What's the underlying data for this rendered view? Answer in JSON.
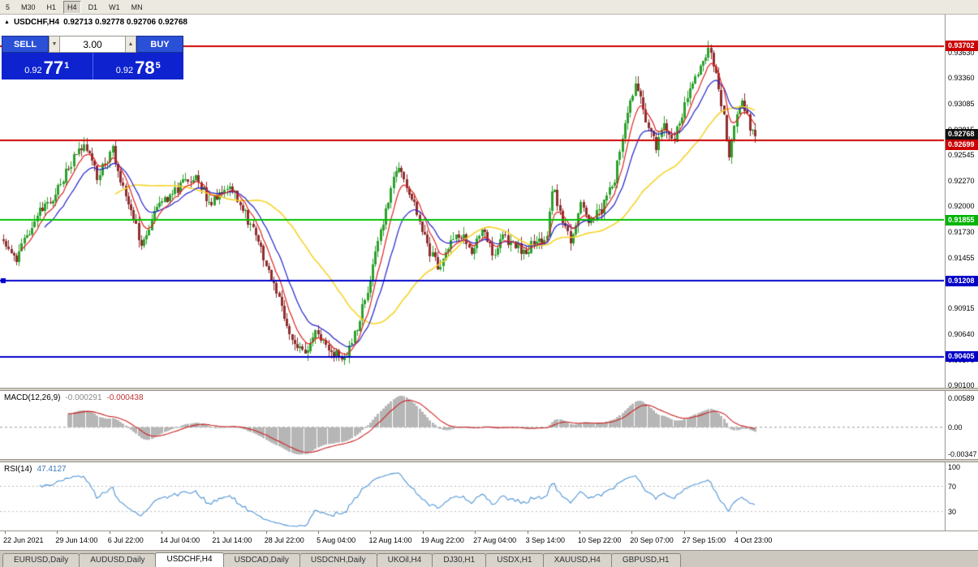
{
  "toolbar": {
    "timeframes": [
      "5",
      "M30",
      "H1",
      "H4",
      "D1",
      "W1",
      "MN"
    ],
    "active_timeframe": "H4"
  },
  "icons": {
    "title_marker": "▲",
    "spin_down": "▼",
    "spin_up": "▲"
  },
  "chart": {
    "title_symbol": "USDCHF,H4",
    "title_ohlc": "0.92713 0.92778 0.92706 0.92768",
    "trade_panel": {
      "sell_label": "SELL",
      "buy_label": "BUY",
      "volume": "3.00",
      "sell_price_main": "0.92",
      "sell_price_big": "77",
      "sell_price_sup": "1",
      "buy_price_main": "0.92",
      "buy_price_big": "78",
      "buy_price_sup": "5"
    },
    "scale": {
      "p_top": 0.94035,
      "p_bottom": 0.90075
    },
    "price_axis_labels": [
      "0.93630",
      "0.93360",
      "0.93085",
      "0.92815",
      "0.92545",
      "0.92270",
      "0.92000",
      "0.91730",
      "0.91455",
      "0.91185",
      "0.90915",
      "0.90640",
      "0.90370",
      "0.90100"
    ],
    "price_tags": [
      {
        "value": "0.93702",
        "price": 0.93702,
        "color": "#cc0000"
      },
      {
        "value": "0.92768",
        "price": 0.92768,
        "color": "#111111"
      },
      {
        "value": "0.92699",
        "price": 0.92699,
        "color": "#cc0000"
      },
      {
        "value": "0.91855",
        "price": 0.91855,
        "color": "#00b400"
      },
      {
        "value": "0.91208",
        "price": 0.91208,
        "color": "#0000c8"
      },
      {
        "value": "0.90405",
        "price": 0.90405,
        "color": "#0000c8"
      }
    ],
    "hlines": [
      {
        "price": 0.93702,
        "color": "#cc0000",
        "width": 2,
        "handle": false
      },
      {
        "price": 0.92699,
        "color": "#cc0000",
        "width": 2,
        "handle": false
      },
      {
        "price": 0.91855,
        "color": "#00c000",
        "width": 2,
        "handle": false
      },
      {
        "price": 0.91208,
        "color": "#0000cc",
        "width": 2,
        "handle": true
      },
      {
        "price": 0.90405,
        "color": "#0000cc",
        "width": 2,
        "handle": false
      }
    ]
  },
  "macd": {
    "label": "MACD(12,26,9)",
    "value1": "-0.000291",
    "value2": "-0.000438",
    "axis_labels": [
      "0.00589",
      "0.00",
      "-0.00347"
    ]
  },
  "rsi": {
    "label": "RSI(14)",
    "value": "47.4127",
    "axis_labels": [
      "100",
      "70",
      "30"
    ],
    "levels": [
      70,
      30
    ]
  },
  "x_axis": {
    "labels": [
      "22 Jun 2021",
      "29 Jun 14:00",
      "6 Jul 22:00",
      "14 Jul 04:00",
      "21 Jul 14:00",
      "28 Jul 22:00",
      "5 Aug 04:00",
      "12 Aug 14:00",
      "19 Aug 22:00",
      "27 Aug 04:00",
      "3 Sep 14:00",
      "10 Sep 22:00",
      "20 Sep 07:00",
      "27 Sep 15:00",
      "4 Oct 23:00"
    ]
  },
  "tabs": {
    "items": [
      "EURUSD,Daily",
      "AUDUSD,Daily",
      "USDCHF,H4",
      "USDCAD,Daily",
      "USDCNH,Daily",
      "UKOil,H4",
      "DJ30,H1",
      "USDX,H1",
      "XAUUSD,H4",
      "GBPUSD,H1"
    ],
    "active": "USDCHF,H4"
  },
  "colors": {
    "up_candle": "#2da12d",
    "down_candle": "#8f2f2f",
    "ma_fast": "#e02020",
    "ma_mid": "#2020cc",
    "ma_slow": "#f5d327",
    "macd_hist": "#b6b6b6",
    "macd_signal": "#cc2222",
    "rsi_line": "#4f94d4"
  },
  "chart_data": {
    "type": "candlestick",
    "symbol": "USDCHF",
    "timeframe": "H4",
    "title": "USDCHF,H4",
    "ohlc_current": {
      "open": 0.92713,
      "high": 0.92778,
      "low": 0.92706,
      "close": 0.92768
    },
    "bid": 0.92771,
    "ask": 0.92785,
    "visible_range": {
      "start": "22 Jun 2021",
      "end": "4 Oct 23:00"
    },
    "ylim": [
      0.90075,
      0.94035
    ],
    "horizontal_levels": [
      0.93702,
      0.92699,
      0.91855,
      0.91208,
      0.90405
    ],
    "indicators": [
      {
        "name": "MACD",
        "params": [
          12,
          26,
          9
        ],
        "values": [
          -0.000291,
          -0.000438
        ],
        "axis_range": [
          -0.00347,
          0.00589
        ]
      },
      {
        "name": "RSI",
        "params": [
          14
        ],
        "value": 47.4127,
        "levels": [
          30,
          70
        ]
      }
    ],
    "moving_averages": [
      {
        "kind": "fast",
        "color": "#e02020"
      },
      {
        "kind": "medium",
        "color": "#2020cc"
      },
      {
        "kind": "slow",
        "color": "#f5d327"
      }
    ],
    "price_anchors": [
      [
        0.0,
        0.9165
      ],
      [
        0.016,
        0.914
      ],
      [
        0.04,
        0.9185
      ],
      [
        0.07,
        0.9215
      ],
      [
        0.095,
        0.9255
      ],
      [
        0.108,
        0.9268
      ],
      [
        0.124,
        0.9232
      ],
      [
        0.145,
        0.926
      ],
      [
        0.165,
        0.9205
      ],
      [
        0.183,
        0.9162
      ],
      [
        0.204,
        0.9198
      ],
      [
        0.225,
        0.9215
      ],
      [
        0.253,
        0.9232
      ],
      [
        0.274,
        0.9205
      ],
      [
        0.301,
        0.9225
      ],
      [
        0.323,
        0.919
      ],
      [
        0.345,
        0.915
      ],
      [
        0.366,
        0.91
      ],
      [
        0.385,
        0.9055
      ],
      [
        0.4,
        0.9042
      ],
      [
        0.415,
        0.907
      ],
      [
        0.432,
        0.9048
      ],
      [
        0.452,
        0.9038
      ],
      [
        0.468,
        0.9065
      ],
      [
        0.49,
        0.913
      ],
      [
        0.51,
        0.92
      ],
      [
        0.525,
        0.9243
      ],
      [
        0.545,
        0.9205
      ],
      [
        0.565,
        0.9155
      ],
      [
        0.578,
        0.9136
      ],
      [
        0.595,
        0.9165
      ],
      [
        0.61,
        0.9172
      ],
      [
        0.623,
        0.9155
      ],
      [
        0.638,
        0.9172
      ],
      [
        0.652,
        0.915
      ],
      [
        0.666,
        0.9168
      ],
      [
        0.68,
        0.9158
      ],
      [
        0.695,
        0.9152
      ],
      [
        0.71,
        0.9165
      ],
      [
        0.722,
        0.9158
      ],
      [
        0.731,
        0.9222
      ],
      [
        0.742,
        0.9185
      ],
      [
        0.755,
        0.9162
      ],
      [
        0.768,
        0.9205
      ],
      [
        0.78,
        0.9185
      ],
      [
        0.795,
        0.9195
      ],
      [
        0.812,
        0.9225
      ],
      [
        0.83,
        0.93
      ],
      [
        0.842,
        0.9335
      ],
      [
        0.855,
        0.929
      ],
      [
        0.868,
        0.9262
      ],
      [
        0.88,
        0.9285
      ],
      [
        0.89,
        0.9268
      ],
      [
        0.9,
        0.929
      ],
      [
        0.915,
        0.933
      ],
      [
        0.93,
        0.9355
      ],
      [
        0.94,
        0.9368
      ],
      [
        0.95,
        0.933
      ],
      [
        0.958,
        0.93
      ],
      [
        0.965,
        0.9255
      ],
      [
        0.975,
        0.93
      ],
      [
        0.985,
        0.931
      ],
      [
        0.992,
        0.9285
      ],
      [
        1.0,
        0.9277
      ]
    ]
  }
}
